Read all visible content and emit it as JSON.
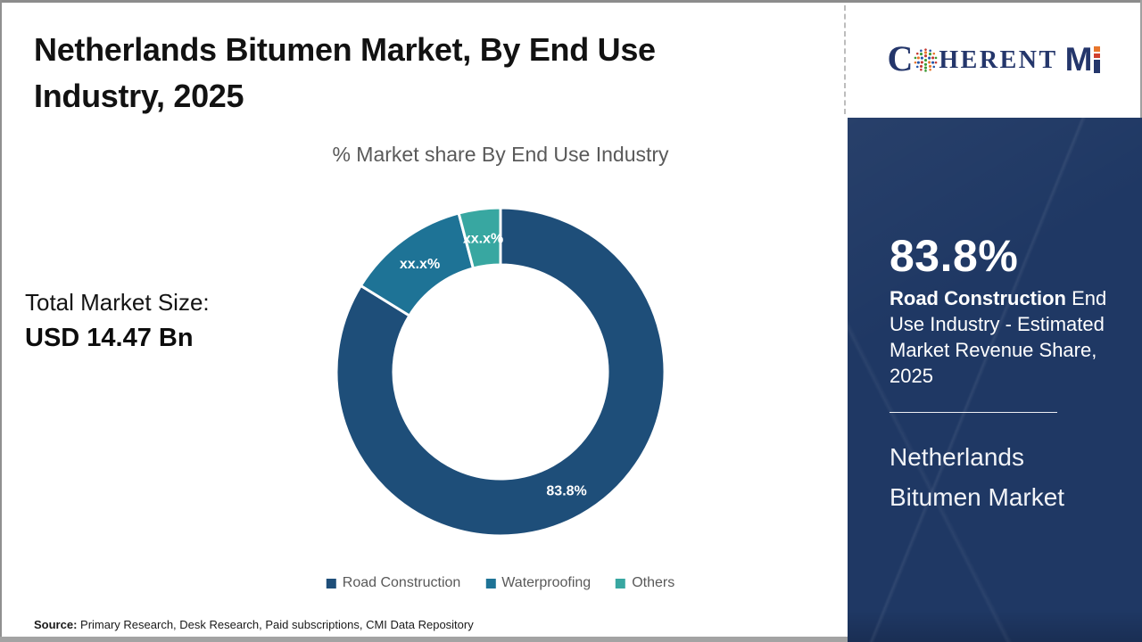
{
  "main": {
    "title": "Netherlands Bitumen Market, By End Use Industry, 2025",
    "subtitle": "% Market share By End Use Industry",
    "total_market": {
      "label": "Total Market Size:",
      "value": "USD 14.47 Bn"
    },
    "source": {
      "label": "Source:",
      "text": " Primary Research, Desk Research, Paid subscriptions, CMI Data Repository"
    }
  },
  "chart_data": {
    "type": "pie",
    "style": "donut",
    "title": "% Market share By End Use Industry",
    "categories": [
      "Road Construction",
      "Waterproofing",
      "Others"
    ],
    "values": [
      83.8,
      12.1,
      4.1
    ],
    "labels": [
      "83.8%",
      "xx.x%",
      "xx.x%"
    ],
    "colors": [
      "#1e4e79",
      "#1e7396",
      "#38a7a1"
    ],
    "legend_position": "bottom",
    "inner_radius_ratio": 0.65,
    "start_angle_deg": 0,
    "direction": "clockwise"
  },
  "sidebar": {
    "stat_value": "83.8%",
    "stat_desc_bold": "Road Construction",
    "stat_desc_rest": " End Use Industry - Estimated Market Revenue Share, 2025",
    "market_name": "Netherlands Bitumen Market"
  },
  "logo": {
    "part_c": "C",
    "part_herent": "HERENT",
    "part_m": "M"
  },
  "colors": {
    "panel_navy": "#1f3864",
    "slice_navy": "#1e4e79",
    "slice_blue": "#1e7396",
    "slice_teal": "#38a7a1",
    "logo_navy": "#24366b",
    "logo_orange": "#e8762c",
    "logo_red": "#d0402f",
    "text_gray": "#595959"
  }
}
